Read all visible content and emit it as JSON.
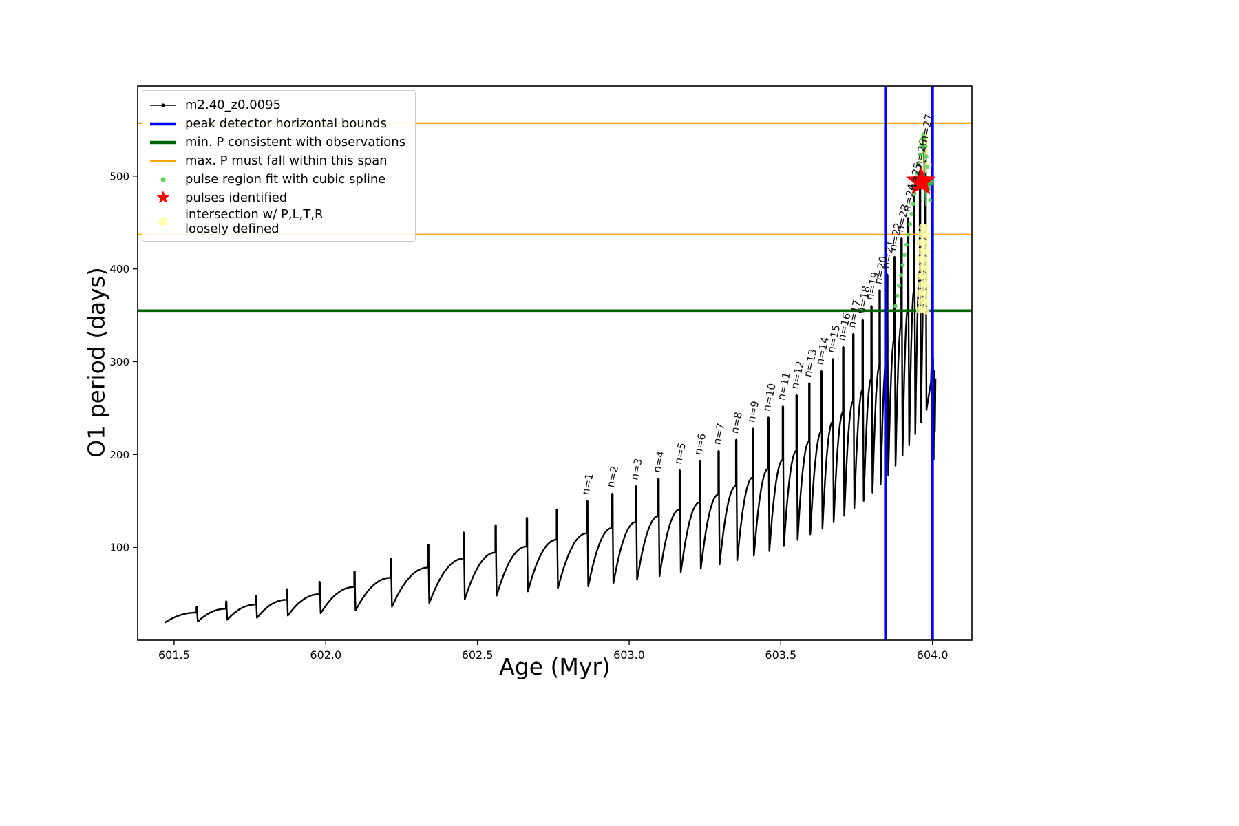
{
  "figure": {
    "xlabel": "Age (Myr)",
    "ylabel": "O1 period (days)",
    "xlim": [
      601.38,
      604.13
    ],
    "ylim": [
      0,
      597
    ],
    "x_ticks": [
      {
        "v": 601.5,
        "label": "601.5"
      },
      {
        "v": 602.0,
        "label": "602.0"
      },
      {
        "v": 602.5,
        "label": "602.5"
      },
      {
        "v": 603.0,
        "label": "603.0"
      },
      {
        "v": 603.5,
        "label": "603.5"
      },
      {
        "v": 604.0,
        "label": "604.0"
      }
    ],
    "y_ticks": [
      {
        "v": 100,
        "label": "100"
      },
      {
        "v": 200,
        "label": "200"
      },
      {
        "v": 300,
        "label": "300"
      },
      {
        "v": 400,
        "label": "400"
      },
      {
        "v": 500,
        "label": "500"
      }
    ]
  },
  "colors": {
    "series": "#000000",
    "vline_blue": "#0000ff",
    "hline_green": "#006400",
    "hline_orange": "#ffa500",
    "spline_dot": "#5fd35f",
    "spline_line": "#2e9e3e",
    "star_red": "#ff0000",
    "intersection_yellow": "#ffffb0",
    "green_marker": "#33bb44"
  },
  "legend": {
    "items": [
      {
        "label": "m2.40_z0.0095",
        "type": "line-with-dot",
        "color": "#000000"
      },
      {
        "label": "peak detector horizontal bounds",
        "type": "thick-line",
        "color": "#0000ff"
      },
      {
        "label": "min. P consistent with observations",
        "type": "thick-line",
        "color": "#006400"
      },
      {
        "label": "max. P must fall within this span",
        "type": "line",
        "color": "#ffa500"
      },
      {
        "label": "pulse region fit with cubic spline",
        "type": "dot",
        "color": "#5fd35f"
      },
      {
        "label": "pulses identified",
        "type": "star",
        "color": "#ff0000"
      },
      {
        "label": "intersection w/ P,L,T,R\nloosely defined",
        "type": "big-dot",
        "color": "#ffffb0"
      }
    ]
  },
  "chart_data": {
    "type": "line",
    "series_name": "m2.40_z0.0095",
    "rise_fraction": 0.63,
    "series_start": {
      "t": 601.47,
      "v": 19
    },
    "pulses": [
      {
        "t": 601.575,
        "peak": 36,
        "dip": 20
      },
      {
        "t": 601.672,
        "peak": 42,
        "dip": 22
      },
      {
        "t": 601.77,
        "peak": 48,
        "dip": 24
      },
      {
        "t": 601.872,
        "peak": 55,
        "dip": 26.5
      },
      {
        "t": 601.98,
        "peak": 63,
        "dip": 29
      },
      {
        "t": 602.095,
        "peak": 74,
        "dip": 32
      },
      {
        "t": 602.215,
        "peak": 88,
        "dip": 36
      },
      {
        "t": 602.338,
        "peak": 103,
        "dip": 40
      },
      {
        "t": 602.455,
        "peak": 116,
        "dip": 44
      },
      {
        "t": 602.56,
        "peak": 124,
        "dip": 48
      },
      {
        "t": 602.663,
        "peak": 132,
        "dip": 52.5
      },
      {
        "t": 602.762,
        "peak": 141,
        "dip": 56
      },
      {
        "t": 602.862,
        "peak": 150,
        "dip": 58,
        "label": "n=1"
      },
      {
        "t": 602.945,
        "peak": 158,
        "dip": 61.5,
        "label": "n=2"
      },
      {
        "t": 603.023,
        "peak": 166,
        "dip": 65,
        "label": "n=3"
      },
      {
        "t": 603.097,
        "peak": 174,
        "dip": 69,
        "label": "n=4"
      },
      {
        "t": 603.167,
        "peak": 183,
        "dip": 73,
        "label": "n=5"
      },
      {
        "t": 603.233,
        "peak": 193,
        "dip": 77,
        "label": "n=6"
      },
      {
        "t": 603.295,
        "peak": 204,
        "dip": 81.5,
        "label": "n=7"
      },
      {
        "t": 603.353,
        "peak": 216,
        "dip": 86,
        "label": "n=8"
      },
      {
        "t": 603.408,
        "peak": 228,
        "dip": 91,
        "label": "n=9"
      },
      {
        "t": 603.459,
        "peak": 240,
        "dip": 96,
        "label": "n=10"
      },
      {
        "t": 603.507,
        "peak": 252,
        "dip": 102,
        "label": "n=11"
      },
      {
        "t": 603.552,
        "peak": 264,
        "dip": 108,
        "label": "n=12"
      },
      {
        "t": 603.594,
        "peak": 277,
        "dip": 114,
        "label": "n=13"
      },
      {
        "t": 603.634,
        "peak": 290,
        "dip": 120,
        "label": "n=14"
      },
      {
        "t": 603.671,
        "peak": 303,
        "dip": 127,
        "label": "n=15"
      },
      {
        "t": 603.706,
        "peak": 316,
        "dip": 134,
        "label": "n=16"
      },
      {
        "t": 603.739,
        "peak": 330,
        "dip": 142,
        "label": "n=17"
      },
      {
        "t": 603.77,
        "peak": 345,
        "dip": 150,
        "label": "n=18"
      },
      {
        "t": 603.799,
        "peak": 360,
        "dip": 159,
        "label": "n=19"
      },
      {
        "t": 603.826,
        "peak": 377,
        "dip": 168,
        "label": "n=20"
      },
      {
        "t": 603.851,
        "peak": 394,
        "dip": 178,
        "label": "n=21"
      },
      {
        "t": 603.875,
        "peak": 413,
        "dip": 188,
        "label": "n=22"
      },
      {
        "t": 603.898,
        "peak": 433,
        "dip": 199,
        "label": "n=23"
      },
      {
        "t": 603.92,
        "peak": 455,
        "dip": 210,
        "label": "n=24"
      },
      {
        "t": 603.94,
        "peak": 478,
        "dip": 222,
        "label": "n=25"
      },
      {
        "t": 603.959,
        "peak": 503,
        "dip": 235,
        "label": "n=26"
      },
      {
        "t": 603.977,
        "peak": 530,
        "dip": 248,
        "label": "n=27"
      }
    ],
    "tail": [
      [
        603.985,
        258
      ],
      [
        603.99,
        268
      ],
      [
        603.995,
        278
      ],
      [
        603.998,
        310
      ],
      [
        604.0,
        188
      ],
      [
        604.002,
        305
      ],
      [
        604.004,
        195
      ],
      [
        604.006,
        290
      ],
      [
        604.008,
        225
      ],
      [
        604.01,
        282
      ]
    ],
    "vlines": [
      603.845,
      604.0
    ],
    "hlines": {
      "green_min_P": 355,
      "orange_span": [
        437,
        557
      ]
    },
    "star": {
      "x": 603.962,
      "y": 494
    },
    "green_marker": {
      "x": 603.988,
      "y": 494
    },
    "spline_line": [
      [
        603.968,
        543
      ],
      [
        603.978,
        468
      ]
    ],
    "spline_points": [
      [
        603.878,
        360
      ],
      [
        603.884,
        371
      ],
      [
        603.89,
        382
      ],
      [
        603.896,
        393
      ],
      [
        603.902,
        404
      ],
      [
        603.908,
        415
      ],
      [
        603.914,
        426
      ],
      [
        603.92,
        437
      ],
      [
        603.926,
        448
      ],
      [
        603.931,
        459
      ],
      [
        603.936,
        470
      ],
      [
        603.941,
        481
      ],
      [
        603.946,
        492
      ],
      [
        603.95,
        503
      ],
      [
        603.954,
        513
      ],
      [
        603.958,
        523
      ],
      [
        603.962,
        532
      ],
      [
        603.966,
        540
      ],
      [
        603.97,
        545
      ],
      [
        603.974,
        541
      ],
      [
        603.977,
        532
      ],
      [
        603.98,
        521
      ],
      [
        603.983,
        510
      ],
      [
        603.986,
        498
      ],
      [
        603.989,
        486
      ],
      [
        603.992,
        474
      ]
    ],
    "intersection_points": [
      [
        603.958,
        356
      ],
      [
        603.968,
        357
      ],
      [
        603.978,
        355
      ],
      [
        603.963,
        365
      ],
      [
        603.973,
        366
      ],
      [
        603.983,
        364
      ],
      [
        603.958,
        374
      ],
      [
        603.968,
        375
      ],
      [
        603.978,
        373
      ],
      [
        603.963,
        383
      ],
      [
        603.973,
        384
      ],
      [
        603.983,
        382
      ],
      [
        603.958,
        392
      ],
      [
        603.968,
        393
      ],
      [
        603.978,
        391
      ],
      [
        603.963,
        401
      ],
      [
        603.973,
        402
      ],
      [
        603.983,
        400
      ],
      [
        603.958,
        410
      ],
      [
        603.968,
        411
      ],
      [
        603.978,
        409
      ],
      [
        603.963,
        419
      ],
      [
        603.973,
        420
      ],
      [
        603.983,
        418
      ],
      [
        603.958,
        428
      ],
      [
        603.968,
        429
      ],
      [
        603.978,
        427
      ],
      [
        603.963,
        437
      ],
      [
        603.973,
        438
      ],
      [
        603.983,
        436
      ],
      [
        603.968,
        445
      ],
      [
        603.978,
        444
      ],
      [
        603.962,
        500
      ],
      [
        603.971,
        507
      ],
      [
        603.966,
        519
      ],
      [
        603.976,
        526
      ],
      [
        603.962,
        536
      ],
      [
        603.972,
        543
      ],
      [
        603.981,
        538
      ],
      [
        603.985,
        512
      ]
    ]
  }
}
